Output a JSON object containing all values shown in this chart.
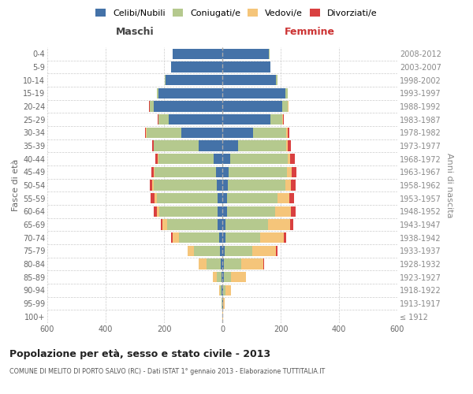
{
  "age_groups": [
    "100+",
    "95-99",
    "90-94",
    "85-89",
    "80-84",
    "75-79",
    "70-74",
    "65-69",
    "60-64",
    "55-59",
    "50-54",
    "45-49",
    "40-44",
    "35-39",
    "30-34",
    "25-29",
    "20-24",
    "15-19",
    "10-14",
    "5-9",
    "0-4"
  ],
  "birth_years": [
    "≤ 1912",
    "1913-1917",
    "1918-1922",
    "1923-1927",
    "1928-1932",
    "1933-1937",
    "1938-1942",
    "1943-1947",
    "1948-1952",
    "1953-1957",
    "1958-1962",
    "1963-1967",
    "1968-1972",
    "1973-1977",
    "1978-1982",
    "1983-1987",
    "1988-1992",
    "1993-1997",
    "1998-2002",
    "2003-2007",
    "2008-2012"
  ],
  "males": {
    "celibe": [
      1,
      1,
      2,
      3,
      5,
      8,
      10,
      15,
      15,
      15,
      20,
      22,
      30,
      80,
      140,
      185,
      235,
      220,
      195,
      175,
      170
    ],
    "coniugato": [
      0,
      1,
      5,
      15,
      50,
      90,
      140,
      175,
      200,
      210,
      215,
      210,
      190,
      155,
      120,
      35,
      15,
      5,
      2,
      1,
      1
    ],
    "vedovo": [
      0,
      1,
      5,
      15,
      25,
      20,
      20,
      15,
      10,
      8,
      5,
      3,
      2,
      1,
      1,
      0,
      0,
      0,
      0,
      0,
      0
    ],
    "divorziato": [
      0,
      0,
      0,
      0,
      0,
      2,
      5,
      5,
      10,
      12,
      10,
      8,
      8,
      5,
      5,
      2,
      1,
      0,
      0,
      0,
      0
    ]
  },
  "females": {
    "nubile": [
      1,
      2,
      3,
      5,
      5,
      8,
      10,
      12,
      15,
      15,
      20,
      22,
      28,
      55,
      105,
      165,
      205,
      215,
      185,
      165,
      160
    ],
    "coniugata": [
      0,
      2,
      8,
      25,
      60,
      95,
      120,
      145,
      165,
      175,
      195,
      200,
      195,
      165,
      115,
      40,
      20,
      8,
      3,
      1,
      1
    ],
    "vedova": [
      2,
      5,
      20,
      50,
      75,
      80,
      80,
      75,
      55,
      40,
      20,
      15,
      10,
      5,
      3,
      2,
      1,
      0,
      0,
      0,
      0
    ],
    "divorziata": [
      0,
      0,
      0,
      0,
      2,
      5,
      8,
      10,
      15,
      15,
      15,
      18,
      15,
      10,
      8,
      5,
      2,
      1,
      0,
      0,
      0
    ]
  },
  "colors": {
    "celibe": "#4472a8",
    "coniugato": "#b5c98e",
    "vedovo": "#f5c57a",
    "divorziato": "#d94040"
  },
  "title": "Popolazione per età, sesso e stato civile - 2013",
  "subtitle": "COMUNE DI MELITO DI PORTO SALVO (RC) - Dati ISTAT 1° gennaio 2013 - Elaborazione TUTTITALIA.IT",
  "xlabel_left": "Maschi",
  "xlabel_right": "Femmine",
  "ylabel_left": "Fasce di età",
  "ylabel_right": "Anni di nascita",
  "xlim": 600,
  "legend_labels": [
    "Celibi/Nubili",
    "Coniugati/e",
    "Vedovi/e",
    "Divorziati/e"
  ],
  "bg_color": "#ffffff"
}
